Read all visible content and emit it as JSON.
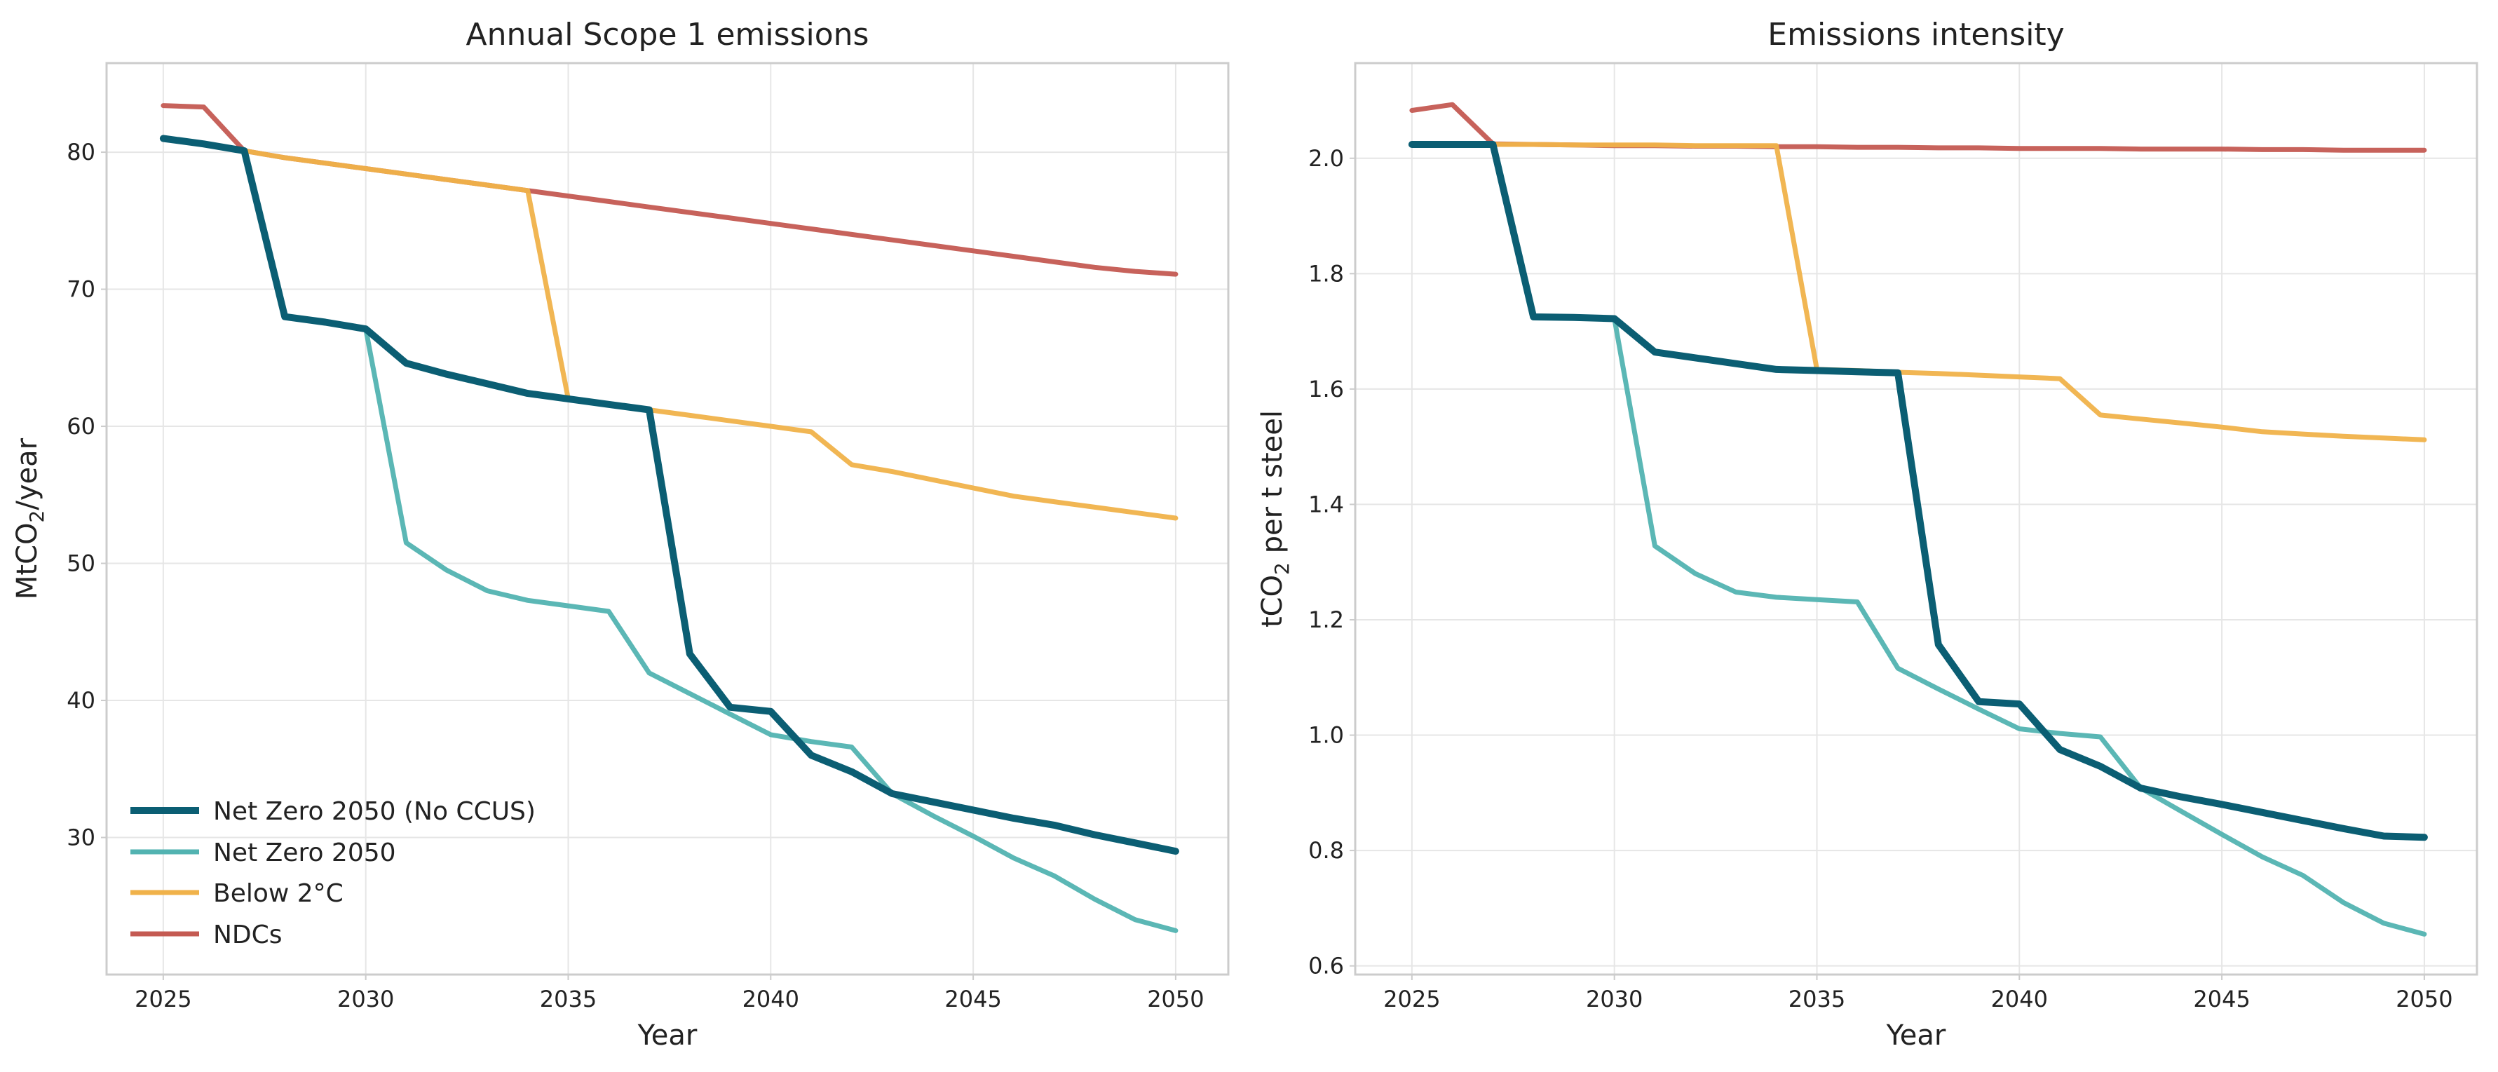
{
  "chart_data": [
    {
      "type": "line",
      "title": "Annual Scope 1 emissions",
      "xlabel": "Year",
      "ylabel": "MtCO",
      "ylabel_sub": "2",
      "ylabel_suffix": "/year",
      "xlim": [
        2023.6,
        2051.3
      ],
      "ylim": [
        20.0,
        86.5
      ],
      "xticks": [
        2025,
        2030,
        2035,
        2040,
        2045,
        2050
      ],
      "yticks": [
        30,
        40,
        50,
        60,
        70,
        80
      ],
      "grid": true,
      "legend": "lower-left",
      "x": [
        2025,
        2026,
        2027,
        2028,
        2029,
        2030,
        2031,
        2032,
        2033,
        2034,
        2035,
        2036,
        2037,
        2038,
        2039,
        2040,
        2041,
        2042,
        2043,
        2044,
        2045,
        2046,
        2047,
        2048,
        2049,
        2050
      ],
      "series": [
        {
          "name": "NDCs",
          "color": "#c45a52",
          "width": 7,
          "values": [
            83.4,
            83.3,
            80.1,
            79.6,
            79.2,
            78.8,
            78.4,
            78.0,
            77.6,
            77.2,
            76.8,
            76.4,
            76.0,
            75.6,
            75.2,
            74.8,
            74.4,
            74.0,
            73.6,
            73.2,
            72.8,
            72.4,
            72.0,
            71.6,
            71.3,
            71.1
          ]
        },
        {
          "name": "Below 2°C",
          "color": "#f0b24a",
          "width": 7,
          "values": [
            81.0,
            80.6,
            80.1,
            79.6,
            79.2,
            78.8,
            78.4,
            78.0,
            77.6,
            77.2,
            62.0,
            61.6,
            61.2,
            60.8,
            60.4,
            60.0,
            59.6,
            57.2,
            56.7,
            56.1,
            55.5,
            54.9,
            54.5,
            54.1,
            53.7,
            53.3
          ]
        },
        {
          "name": "Net Zero 2050",
          "color": "#52b3b1",
          "width": 7,
          "values": [
            81.0,
            80.6,
            80.1,
            68.0,
            67.6,
            67.1,
            51.5,
            49.5,
            48.0,
            47.3,
            46.9,
            46.5,
            42.0,
            40.5,
            39.0,
            37.5,
            37.0,
            36.6,
            33.2,
            31.6,
            30.1,
            28.5,
            27.2,
            25.5,
            24.0,
            23.2
          ]
        },
        {
          "name": "Net Zero 2050 (No CCUS)",
          "color": "#0b5e73",
          "width": 10,
          "values": [
            81.0,
            80.6,
            80.1,
            68.0,
            67.6,
            67.1,
            64.6,
            63.8,
            63.1,
            62.4,
            62.0,
            61.6,
            61.2,
            43.4,
            39.5,
            39.2,
            36.0,
            34.8,
            33.2,
            32.6,
            32.0,
            31.4,
            30.9,
            30.2,
            29.6,
            29.0
          ]
        }
      ]
    },
    {
      "type": "line",
      "title": "Emissions intensity",
      "xlabel": "Year",
      "ylabel": "tCO",
      "ylabel_sub": "2",
      "ylabel_suffix": " per t steel",
      "xlim": [
        2023.6,
        2051.3
      ],
      "ylim": [
        0.585,
        2.165
      ],
      "xticks": [
        2025,
        2030,
        2035,
        2040,
        2045,
        2050
      ],
      "yticks": [
        0.6,
        0.8,
        1.0,
        1.2,
        1.4,
        1.6,
        1.8,
        2.0
      ],
      "grid": true,
      "x": [
        2025,
        2026,
        2027,
        2028,
        2029,
        2030,
        2031,
        2032,
        2033,
        2034,
        2035,
        2036,
        2037,
        2038,
        2039,
        2040,
        2041,
        2042,
        2043,
        2044,
        2045,
        2046,
        2047,
        2048,
        2049,
        2050
      ],
      "series": [
        {
          "name": "NDCs",
          "color": "#c45a52",
          "width": 7,
          "values": [
            2.083,
            2.093,
            2.025,
            2.024,
            2.023,
            2.022,
            2.022,
            2.021,
            2.021,
            2.02,
            2.02,
            2.019,
            2.019,
            2.018,
            2.018,
            2.017,
            2.017,
            2.017,
            2.016,
            2.016,
            2.016,
            2.015,
            2.015,
            2.014,
            2.014,
            2.014
          ]
        },
        {
          "name": "Below 2°C",
          "color": "#f0b24a",
          "width": 7,
          "values": [
            2.024,
            2.024,
            2.024,
            2.024,
            2.023,
            2.023,
            2.023,
            2.022,
            2.022,
            2.022,
            1.634,
            1.632,
            1.629,
            1.627,
            1.624,
            1.621,
            1.618,
            1.555,
            1.548,
            1.541,
            1.534,
            1.526,
            1.522,
            1.518,
            1.515,
            1.512
          ]
        },
        {
          "name": "Net Zero 2050",
          "color": "#52b3b1",
          "width": 7,
          "values": [
            2.024,
            2.024,
            2.024,
            1.725,
            1.724,
            1.722,
            1.328,
            1.28,
            1.248,
            1.239,
            1.235,
            1.231,
            1.116,
            1.08,
            1.045,
            1.011,
            1.003,
            0.997,
            0.908,
            0.868,
            0.828,
            0.789,
            0.757,
            0.71,
            0.674,
            0.655
          ]
        },
        {
          "name": "Net Zero 2050 (No CCUS)",
          "color": "#0b5e73",
          "width": 10,
          "values": [
            2.024,
            2.024,
            2.024,
            1.725,
            1.724,
            1.722,
            1.664,
            1.654,
            1.644,
            1.634,
            1.632,
            1.63,
            1.628,
            1.157,
            1.058,
            1.054,
            0.975,
            0.946,
            0.908,
            0.893,
            0.88,
            0.866,
            0.852,
            0.838,
            0.825,
            0.823
          ]
        }
      ]
    }
  ],
  "legend_order": [
    "Net Zero 2050 (No CCUS)",
    "Net Zero 2050",
    "Below 2°C",
    "NDCs"
  ]
}
